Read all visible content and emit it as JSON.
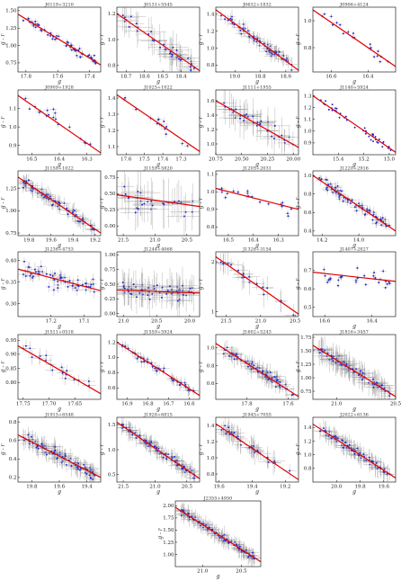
{
  "figure": {
    "layout": "7 rows of panels: 4 per row in rows 1-6, one centered panel in row 7",
    "common_xlabel": "g",
    "common_ylabel": "g - r",
    "x_axis_direction": "decreasing (brighter g to the right)",
    "point_color": "#1f1fd0",
    "errorbar_color": "#9a9a9a",
    "fit_line_color": "#e00000"
  },
  "chart_data": [
    {
      "type": "scatter",
      "title": "J0119+3210",
      "xlim": [
        17.85,
        17.33
      ],
      "ylim": [
        0.62,
        1.55
      ],
      "xticks": [
        "17.8",
        "17.6",
        "17.4"
      ],
      "yticks": [
        "0.75",
        "1.00",
        "1.25",
        "1.50"
      ],
      "fit": [
        [
          17.85,
          1.45
        ],
        [
          17.33,
          0.72
        ]
      ],
      "n": 60,
      "err": 0.015,
      "spread": 0.06
    },
    {
      "type": "scatter",
      "title": "J0131+5545",
      "xlim": [
        18.75,
        18.3
      ],
      "ylim": [
        0.75,
        1.25
      ],
      "xticks": [
        "18.7",
        "18.6",
        "18.5",
        "18.4"
      ],
      "yticks": [
        "0.8",
        "1.0",
        "1.2"
      ],
      "fit": [
        [
          18.75,
          1.2
        ],
        [
          18.3,
          0.76
        ]
      ],
      "n": 40,
      "err": 0.06,
      "spread": 0.05
    },
    {
      "type": "scatter",
      "title": "J0632+1832",
      "xlim": [
        19.15,
        18.5
      ],
      "ylim": [
        0.72,
        1.48
      ],
      "xticks": [
        "19.0",
        "18.8",
        "18.6"
      ],
      "yticks": [
        "0.8",
        "1.0",
        "1.2",
        "1.4"
      ],
      "fit": [
        [
          19.15,
          1.45
        ],
        [
          18.5,
          0.74
        ]
      ],
      "n": 70,
      "err": 0.04,
      "spread": 0.05
    },
    {
      "type": "scatter",
      "title": "J0906+4124",
      "xlim": [
        16.7,
        16.25
      ],
      "ylim": [
        0.62,
        1.1
      ],
      "xticks": [
        "16.6",
        "16.4"
      ],
      "yticks": [
        "0.8",
        "1.0"
      ],
      "fit": [
        [
          16.7,
          1.08
        ],
        [
          16.25,
          0.66
        ]
      ],
      "n": 20,
      "err": 0.01,
      "spread": 0.06
    },
    {
      "type": "scatter",
      "title": "J0909+1928",
      "xlim": [
        16.55,
        16.25
      ],
      "ylim": [
        0.85,
        1.2
      ],
      "xticks": [
        "16.5",
        "16.4",
        "16.3"
      ],
      "yticks": [
        "0.9",
        "1.0",
        "1.1"
      ],
      "fit": [
        [
          16.55,
          1.17
        ],
        [
          16.25,
          0.86
        ]
      ],
      "n": 18,
      "err": 0.01,
      "spread": 0.04
    },
    {
      "type": "scatter",
      "title": "J1025+1022",
      "xlim": [
        17.65,
        17.2
      ],
      "ylim": [
        1.05,
        1.45
      ],
      "xticks": [
        "17.6",
        "17.5",
        "17.4",
        "17.3"
      ],
      "yticks": [
        "1.1",
        "1.2",
        "1.3",
        "1.4"
      ],
      "fit": [
        [
          17.65,
          1.42
        ],
        [
          17.2,
          1.07
        ]
      ],
      "n": 15,
      "err": 0.015,
      "spread": 0.03
    },
    {
      "type": "scatter",
      "title": "J1111+1955",
      "xlim": [
        20.75,
        19.95
      ],
      "ylim": [
        0.85,
        1.75
      ],
      "xticks": [
        "20.75",
        "20.50",
        "20.25",
        "20.00"
      ],
      "yticks": [
        "1.0",
        "1.2",
        "1.4",
        "1.6"
      ],
      "fit": [
        [
          20.75,
          1.6
        ],
        [
          19.95,
          0.95
        ]
      ],
      "n": 35,
      "err": 0.12,
      "spread": 0.1
    },
    {
      "type": "scatter",
      "title": "J1148+5924",
      "xlim": [
        15.6,
        14.95
      ],
      "ylim": [
        0.8,
        1.35
      ],
      "xticks": [
        "15.4",
        "15.2",
        "15.0"
      ],
      "yticks": [
        "0.9",
        "1.0",
        "1.1",
        "1.2",
        "1.3"
      ],
      "fit": [
        [
          15.6,
          1.3
        ],
        [
          14.95,
          0.82
        ]
      ],
      "n": 40,
      "err": 0.005,
      "spread": 0.04
    },
    {
      "type": "scatter",
      "title": "J1158+1022",
      "xlim": [
        19.9,
        19.15
      ],
      "ylim": [
        0.72,
        1.45
      ],
      "xticks": [
        "19.8",
        "19.6",
        "19.4",
        "19.2"
      ],
      "yticks": [
        "0.75",
        "1.00",
        "1.25"
      ],
      "fit": [
        [
          19.9,
          1.38
        ],
        [
          19.15,
          0.75
        ]
      ],
      "n": 80,
      "err": 0.05,
      "spread": 0.06
    },
    {
      "type": "scatter",
      "title": "J1159+5820",
      "xlim": [
        21.6,
        20.3
      ],
      "ylim": [
        -0.15,
        0.85
      ],
      "xticks": [
        "21.5",
        "21.0",
        "20.5"
      ],
      "yticks": [
        "0.00",
        "0.25",
        "0.50",
        "0.75"
      ],
      "fit": [
        [
          21.6,
          0.48
        ],
        [
          20.3,
          0.3
        ]
      ],
      "n": 30,
      "err": 0.25,
      "spread": 0.18
    },
    {
      "type": "scatter",
      "title": "J1205+2031",
      "xlim": [
        16.55,
        16.22
      ],
      "ylim": [
        0.75,
        1.12
      ],
      "xticks": [
        "16.5",
        "16.4",
        "16.3"
      ],
      "yticks": [
        "0.8",
        "0.9",
        "1.0",
        "1.1"
      ],
      "fit": [
        [
          16.55,
          1.02
        ],
        [
          16.22,
          0.9
        ]
      ],
      "n": 20,
      "err": 0.01,
      "spread": 0.04
    },
    {
      "type": "scatter",
      "title": "J1220+2916",
      "xlim": [
        14.25,
        13.8
      ],
      "ylim": [
        0.35,
        1.05
      ],
      "xticks": [
        "14.2",
        "14.0"
      ],
      "yticks": [
        "0.4",
        "0.6",
        "0.8",
        "1.0"
      ],
      "fit": [
        [
          14.25,
          1.0
        ],
        [
          13.8,
          0.4
        ]
      ],
      "n": 80,
      "err": 0.02,
      "spread": 0.06
    },
    {
      "type": "scatter",
      "title": "J1236+4753",
      "xlim": [
        17.3,
        17.05
      ],
      "ylim": [
        0.27,
        0.42
      ],
      "xticks": [
        "17.2",
        "17.1"
      ],
      "yticks": [
        "0.30",
        "0.35",
        "0.40"
      ],
      "fit": [
        [
          17.3,
          0.38
        ],
        [
          17.05,
          0.33
        ]
      ],
      "n": 60,
      "err": 0.012,
      "spread": 0.02
    },
    {
      "type": "scatter",
      "title": "J1244+4068",
      "xlim": [
        21.1,
        19.85
      ],
      "ylim": [
        -0.05,
        1.05
      ],
      "xticks": [
        "21.0",
        "20.5",
        "20.0"
      ],
      "yticks": [
        "0.00",
        "0.25",
        "0.50",
        "0.75",
        "1.00"
      ],
      "fit": [
        [
          21.1,
          0.4
        ],
        [
          19.85,
          0.35
        ]
      ],
      "n": 60,
      "err": 0.18,
      "spread": 0.12
    },
    {
      "type": "scatter",
      "title": "J1326+3154",
      "xlim": [
        21.65,
        20.45
      ],
      "ylim": [
        0.9,
        2.2
      ],
      "xticks": [
        "21.5",
        "21.0",
        "20.5"
      ],
      "yticks": [
        "1",
        "2"
      ],
      "fit": [
        [
          21.65,
          2.1
        ],
        [
          20.45,
          0.95
        ]
      ],
      "n": 20,
      "err": 0.12,
      "spread": 0.1
    },
    {
      "type": "scatter",
      "title": "J1407+2827",
      "xlim": [
        16.65,
        16.3
      ],
      "ylim": [
        0.45,
        0.8
      ],
      "xticks": [
        "16.6",
        "16.4"
      ],
      "yticks": [
        "0.5",
        "0.6",
        "0.7"
      ],
      "fit": [
        [
          16.65,
          0.69
        ],
        [
          16.3,
          0.64
        ]
      ],
      "n": 30,
      "err": 0.01,
      "spread": 0.06
    },
    {
      "type": "scatter",
      "title": "J1511+0518",
      "xlim": [
        17.76,
        17.6
      ],
      "ylim": [
        0.74,
        0.97
      ],
      "xticks": [
        "17.75",
        "17.70",
        "17.65"
      ],
      "yticks": [
        "0.80",
        "0.85",
        "0.90",
        "0.95"
      ],
      "fit": [
        [
          17.76,
          0.93
        ],
        [
          17.6,
          0.76
        ]
      ],
      "n": 20,
      "err": 0.01,
      "spread": 0.02
    },
    {
      "type": "scatter",
      "title": "J1559+5924",
      "xlim": [
        16.95,
        16.55
      ],
      "ylim": [
        0.45,
        1.3
      ],
      "xticks": [
        "16.9",
        "16.8",
        "16.7",
        "16.6"
      ],
      "yticks": [
        "0.6",
        "0.8",
        "1.0",
        "1.2"
      ],
      "fit": [
        [
          16.95,
          1.2
        ],
        [
          16.55,
          0.5
        ]
      ],
      "n": 50,
      "err": 0.02,
      "spread": 0.05
    },
    {
      "type": "scatter",
      "title": "J1602+5243",
      "xlim": [
        17.95,
        17.55
      ],
      "ylim": [
        0.42,
        1.15
      ],
      "xticks": [
        "17.8",
        "17.6"
      ],
      "yticks": [
        "0.6",
        "0.8",
        "1.0"
      ],
      "fit": [
        [
          17.95,
          1.05
        ],
        [
          17.55,
          0.45
        ]
      ],
      "n": 80,
      "err": 0.03,
      "spread": 0.06
    },
    {
      "type": "scatter",
      "title": "J1816+3457",
      "xlim": [
        21.2,
        20.5
      ],
      "ylim": [
        0.6,
        1.8
      ],
      "xticks": [
        "21.0",
        "20.5"
      ],
      "yticks": [
        "0.75",
        "1.00",
        "1.25",
        "1.50",
        "1.75"
      ],
      "fit": [
        [
          21.2,
          1.6
        ],
        [
          20.5,
          0.65
        ]
      ],
      "n": 90,
      "err": 0.08,
      "spread": 0.08
    },
    {
      "type": "scatter",
      "title": "J1915+6548",
      "xlim": [
        19.9,
        19.3
      ],
      "ylim": [
        0.15,
        0.85
      ],
      "xticks": [
        "19.8",
        "19.6",
        "19.4"
      ],
      "yticks": [
        "0.2",
        "0.4",
        "0.6",
        "0.8"
      ],
      "fit": [
        [
          19.9,
          0.66
        ],
        [
          19.3,
          0.2
        ]
      ],
      "n": 100,
      "err": 0.05,
      "spread": 0.06
    },
    {
      "type": "scatter",
      "title": "J1928+6815",
      "xlim": [
        21.6,
        20.3
      ],
      "ylim": [
        0.35,
        1.65
      ],
      "xticks": [
        "21.5",
        "21.0",
        "20.5"
      ],
      "yticks": [
        "0.5",
        "1.0",
        "1.5"
      ],
      "fit": [
        [
          21.6,
          1.55
        ],
        [
          20.3,
          0.42
        ]
      ],
      "n": 90,
      "err": 0.1,
      "spread": 0.08
    },
    {
      "type": "scatter",
      "title": "J1945+7055",
      "xlim": [
        19.62,
        19.12
      ],
      "ylim": [
        0.7,
        1.5
      ],
      "xticks": [
        "19.6",
        "19.4",
        "19.2"
      ],
      "yticks": [
        "0.8",
        "1.0",
        "1.2",
        "1.4"
      ],
      "fit": [
        [
          19.62,
          1.42
        ],
        [
          19.12,
          0.73
        ]
      ],
      "n": 40,
      "err": 0.05,
      "spread": 0.05
    },
    {
      "type": "scatter",
      "title": "J2022+6136",
      "xlim": [
        20.2,
        19.5
      ],
      "ylim": [
        0.6,
        1.55
      ],
      "xticks": [
        "20.0",
        "19.8",
        "19.6"
      ],
      "yticks": [
        "0.8",
        "1.0",
        "1.2",
        "1.4"
      ],
      "fit": [
        [
          20.2,
          1.45
        ],
        [
          19.5,
          0.66
        ]
      ],
      "n": 80,
      "err": 0.06,
      "spread": 0.06
    },
    {
      "type": "scatter",
      "title": "J2355+4950",
      "xlim": [
        21.35,
        20.25
      ],
      "ylim": [
        0.75,
        2.1
      ],
      "xticks": [
        "21.0",
        "20.5"
      ],
      "yticks": [
        "1.00",
        "1.25",
        "1.50",
        "1.75",
        "2.00"
      ],
      "fit": [
        [
          21.35,
          1.97
        ],
        [
          20.25,
          0.85
        ]
      ],
      "n": 110,
      "err": 0.08,
      "spread": 0.07
    }
  ]
}
